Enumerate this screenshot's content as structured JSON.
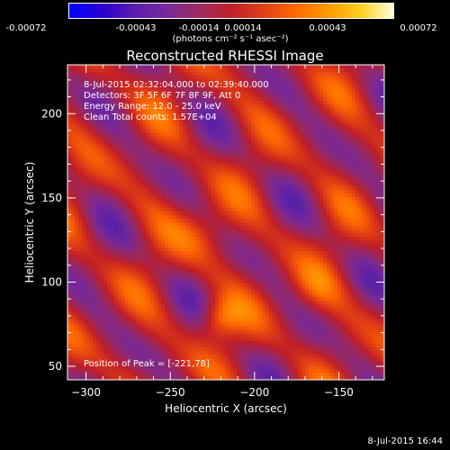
{
  "colorbar": {
    "ticks": [
      "-0.00072",
      "-0.00043",
      "-0.00014",
      "0.00014",
      "0.00043",
      "0.00072"
    ],
    "units": "(photons cm⁻² s⁻¹ asec⁻²)",
    "range": [
      -0.00072,
      0.00072
    ]
  },
  "info": {
    "time_range": "8-Jul-2015 02:32:04.000 to 02:39:40.000",
    "detectors": "Detectors: 3F 5F 6F 7F 8F 9F, Att 0",
    "energy": "Energy Range: 12.0 - 25.0 keV",
    "clean": "Clean     Total counts: 1.57E+04",
    "peak": "Position of Peak = [-221,78]"
  },
  "footer": {
    "date": "8-Jul-2015 16:44"
  },
  "chart_data": {
    "type": "heatmap",
    "title": "Reconstructed RHESSI Image",
    "xlabel": "Heliocentric X (arcsec)",
    "ylabel": "Heliocentric Y (arcsec)",
    "xlim": [
      -311,
      -123
    ],
    "ylim": [
      42,
      229
    ],
    "xticks": [
      -300,
      -250,
      -200,
      -150
    ],
    "yticks": [
      50,
      100,
      150,
      200
    ],
    "peak": [
      -221,
      78
    ],
    "value_range": [
      -0.00072,
      0.00072
    ],
    "stripes_direction": "diagonal",
    "grid": false
  }
}
